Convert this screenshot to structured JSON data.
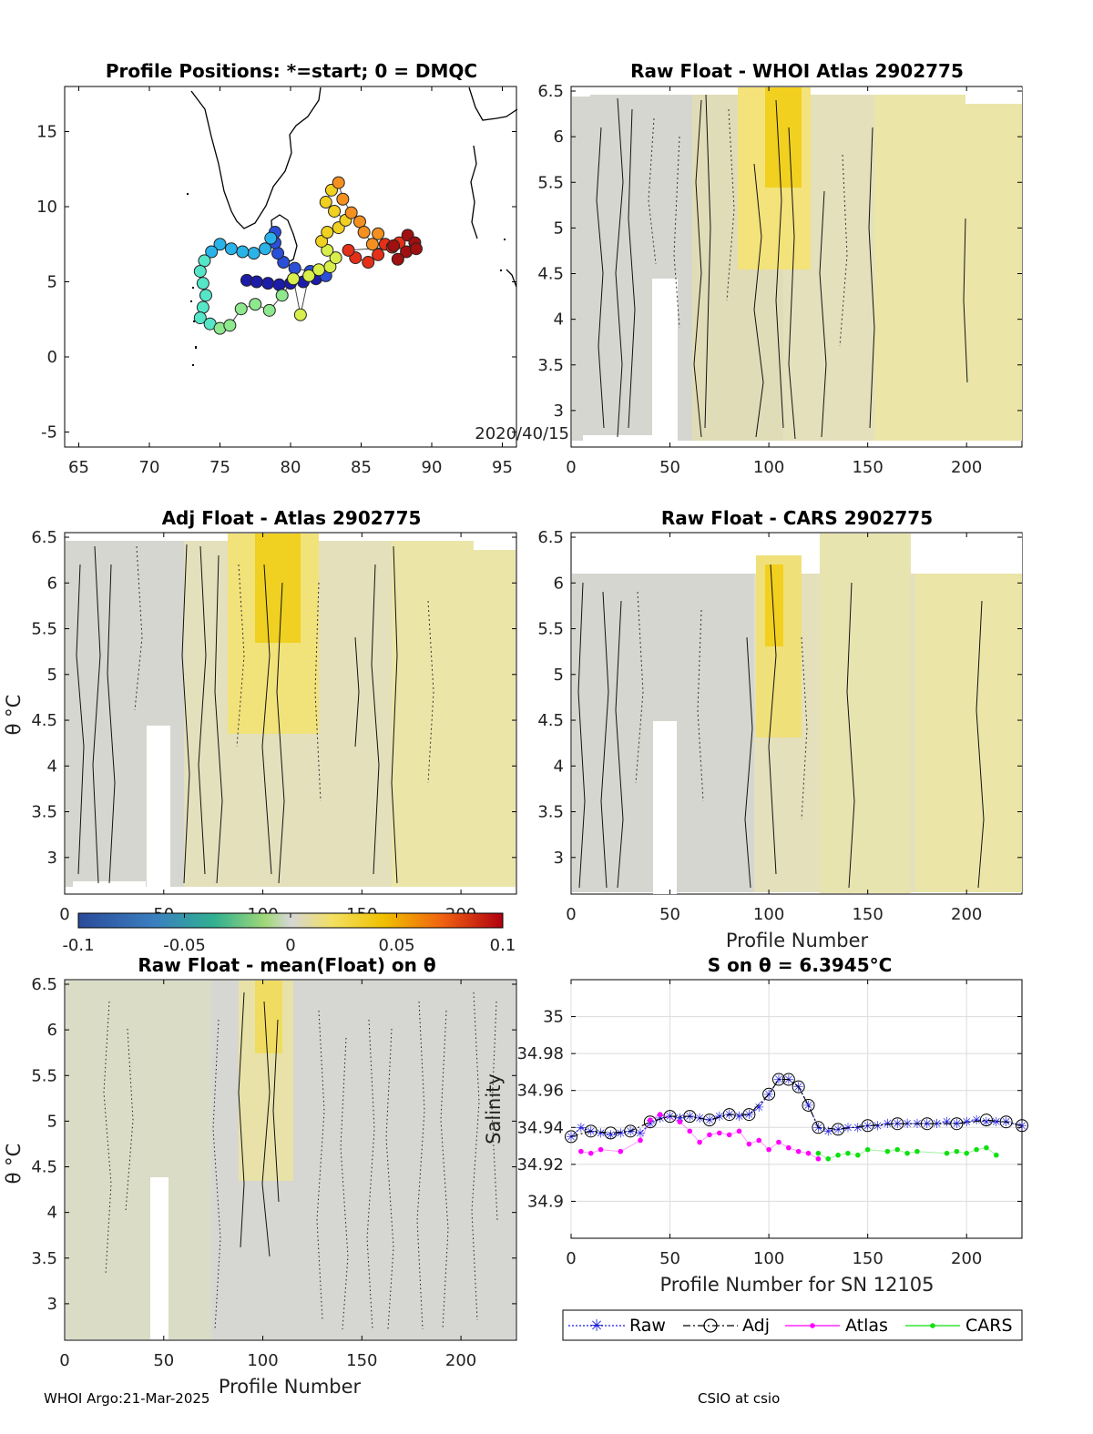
{
  "footer": {
    "left": "WHOI Argo:21-Mar-2025",
    "right": "CSIO at csio"
  },
  "colors": {
    "map_ramp": [
      "#1c1ca8",
      "#2a4fd8",
      "#29b3e8",
      "#55e6c8",
      "#8ee88e",
      "#d8ee4a",
      "#f0d020",
      "#f39020",
      "#e43018",
      "#a01010"
    ]
  },
  "chart_data": [
    {
      "type": "scatter",
      "title": "Profile Positions: *=start; 0 = DMQC",
      "xlim": [
        64,
        96
      ],
      "ylim": [
        -6,
        18
      ],
      "xticks": [
        65,
        70,
        75,
        80,
        85,
        90,
        95
      ],
      "yticks": [
        -5,
        0,
        5,
        10,
        15
      ],
      "annotation": "2020/40/15",
      "track": [
        {
          "x": 76.9,
          "y": 5.1
        },
        {
          "x": 77.6,
          "y": 5.0
        },
        {
          "x": 78.4,
          "y": 4.9
        },
        {
          "x": 79.2,
          "y": 4.8
        },
        {
          "x": 80.0,
          "y": 4.9
        },
        {
          "x": 80.9,
          "y": 5.0
        },
        {
          "x": 81.8,
          "y": 5.2
        },
        {
          "x": 82.5,
          "y": 5.4
        },
        {
          "x": 81.4,
          "y": 5.7
        },
        {
          "x": 80.3,
          "y": 5.9
        },
        {
          "x": 79.5,
          "y": 6.3
        },
        {
          "x": 79.1,
          "y": 6.9
        },
        {
          "x": 78.9,
          "y": 7.6
        },
        {
          "x": 78.9,
          "y": 8.3
        },
        {
          "x": 78.6,
          "y": 7.9
        },
        {
          "x": 78.2,
          "y": 7.2
        },
        {
          "x": 77.4,
          "y": 6.9
        },
        {
          "x": 76.6,
          "y": 7.0
        },
        {
          "x": 75.8,
          "y": 7.2
        },
        {
          "x": 75.0,
          "y": 7.5
        },
        {
          "x": 74.4,
          "y": 7.0
        },
        {
          "x": 73.9,
          "y": 6.4
        },
        {
          "x": 73.6,
          "y": 5.7
        },
        {
          "x": 73.8,
          "y": 4.9
        },
        {
          "x": 74.0,
          "y": 4.1
        },
        {
          "x": 73.8,
          "y": 3.3
        },
        {
          "x": 73.6,
          "y": 2.6
        },
        {
          "x": 74.3,
          "y": 2.2
        },
        {
          "x": 75.0,
          "y": 1.9
        },
        {
          "x": 75.7,
          "y": 2.1
        },
        {
          "x": 76.5,
          "y": 3.2
        },
        {
          "x": 77.5,
          "y": 3.5
        },
        {
          "x": 78.5,
          "y": 3.1
        },
        {
          "x": 79.4,
          "y": 4.1
        },
        {
          "x": 80.2,
          "y": 5.2
        },
        {
          "x": 80.7,
          "y": 2.8
        },
        {
          "x": 81.3,
          "y": 5.4
        },
        {
          "x": 82.0,
          "y": 5.8
        },
        {
          "x": 82.8,
          "y": 6.0
        },
        {
          "x": 83.2,
          "y": 6.6
        },
        {
          "x": 82.6,
          "y": 7.1
        },
        {
          "x": 82.2,
          "y": 7.7
        },
        {
          "x": 82.6,
          "y": 8.3
        },
        {
          "x": 83.4,
          "y": 8.6
        },
        {
          "x": 83.9,
          "y": 9.1
        },
        {
          "x": 83.1,
          "y": 9.7
        },
        {
          "x": 82.5,
          "y": 10.3
        },
        {
          "x": 82.9,
          "y": 11.1
        },
        {
          "x": 83.4,
          "y": 11.6
        },
        {
          "x": 83.7,
          "y": 10.5
        },
        {
          "x": 84.3,
          "y": 9.6
        },
        {
          "x": 84.9,
          "y": 9.0
        },
        {
          "x": 85.2,
          "y": 8.3
        },
        {
          "x": 85.8,
          "y": 7.5
        },
        {
          "x": 86.2,
          "y": 8.2
        },
        {
          "x": 86.7,
          "y": 7.5
        },
        {
          "x": 86.2,
          "y": 6.8
        },
        {
          "x": 85.5,
          "y": 6.3
        },
        {
          "x": 84.6,
          "y": 6.6
        },
        {
          "x": 84.1,
          "y": 7.1
        },
        {
          "x": 87.2,
          "y": 7.3
        },
        {
          "x": 87.7,
          "y": 7.6
        },
        {
          "x": 88.3,
          "y": 8.1
        },
        {
          "x": 88.8,
          "y": 7.6
        },
        {
          "x": 88.2,
          "y": 7.0
        },
        {
          "x": 87.6,
          "y": 6.5
        },
        {
          "x": 88.9,
          "y": 7.2
        },
        {
          "x": 87.3,
          "y": 7.4
        }
      ]
    },
    {
      "type": "heatmap",
      "title": "Raw Float - WHOI Atlas  2902775",
      "xlim": [
        0,
        228
      ],
      "ylim": [
        2.6,
        6.55
      ],
      "xticks": [
        0,
        50,
        100,
        150,
        200
      ],
      "yticks": [
        3,
        3.5,
        4,
        4.5,
        5,
        5.5,
        6,
        6.5
      ]
    },
    {
      "type": "heatmap",
      "title": "Adj Float - Atlas  2902775",
      "ylabel": "θ °C",
      "xlim": [
        0,
        228
      ],
      "ylim": [
        2.6,
        6.55
      ],
      "xticks": [
        0,
        50,
        100,
        150,
        200
      ],
      "yticks": [
        3,
        3.5,
        4,
        4.5,
        5,
        5.5,
        6,
        6.5
      ],
      "colorbar": {
        "min": -0.1,
        "max": 0.1,
        "ticks": [
          "-0.1",
          "-0.05",
          "0",
          "0.05",
          "0.1"
        ]
      }
    },
    {
      "type": "heatmap",
      "title": "Raw Float - CARS  2902775",
      "xlabel": "Profile Number",
      "xlim": [
        0,
        228
      ],
      "ylim": [
        2.6,
        6.55
      ],
      "xticks": [
        0,
        50,
        100,
        150,
        200
      ],
      "yticks": [
        3,
        3.5,
        4,
        4.5,
        5,
        5.5,
        6,
        6.5
      ]
    },
    {
      "type": "heatmap",
      "title": "Raw Float - mean(Float) on θ",
      "xlabel": "Profile Number",
      "ylabel": "θ °C",
      "xlim": [
        0,
        228
      ],
      "ylim": [
        2.6,
        6.55
      ],
      "xticks": [
        0,
        50,
        100,
        150,
        200
      ],
      "yticks": [
        3,
        3.5,
        4,
        4.5,
        5,
        5.5,
        6,
        6.5
      ]
    },
    {
      "type": "line",
      "title": "S on θ = 6.3945°C",
      "xlabel": "Profile Number for SN 12105",
      "ylabel": "Salinity",
      "xlim": [
        0,
        228
      ],
      "ylim": [
        34.88,
        35.02
      ],
      "xticks": [
        0,
        50,
        100,
        150,
        200
      ],
      "yticks": [
        34.9,
        34.92,
        34.94,
        34.96,
        34.98,
        35
      ],
      "grid": true,
      "legend": {
        "position": "bottom",
        "entries": [
          "Raw",
          "Adj",
          "Atlas",
          "CARS"
        ]
      },
      "series": [
        {
          "name": "Raw",
          "color": "#1a1adc",
          "x": [
            0,
            5,
            10,
            15,
            20,
            25,
            30,
            35,
            40,
            45,
            50,
            55,
            60,
            65,
            70,
            75,
            80,
            85,
            90,
            95,
            100,
            105,
            110,
            115,
            120,
            125,
            130,
            135,
            140,
            145,
            150,
            155,
            160,
            165,
            170,
            175,
            180,
            185,
            190,
            195,
            200,
            205,
            210,
            215,
            220,
            228
          ],
          "y": [
            34.935,
            34.94,
            34.938,
            34.937,
            34.936,
            34.937,
            34.938,
            34.937,
            34.942,
            34.945,
            34.946,
            34.945,
            34.946,
            34.945,
            34.944,
            34.946,
            34.947,
            34.946,
            34.947,
            34.951,
            34.958,
            34.966,
            34.966,
            34.962,
            34.952,
            34.94,
            34.938,
            34.939,
            34.94,
            34.94,
            34.941,
            34.941,
            34.942,
            34.942,
            34.942,
            34.942,
            34.942,
            34.942,
            34.943,
            34.942,
            34.943,
            34.944,
            34.943,
            34.943,
            34.943,
            34.941
          ]
        },
        {
          "name": "Adj",
          "color": "#000000",
          "x": [
            0,
            10,
            20,
            30,
            40,
            50,
            60,
            70,
            80,
            90,
            100,
            105,
            110,
            115,
            120,
            125,
            135,
            150,
            165,
            180,
            195,
            210,
            220,
            228
          ],
          "y": [
            34.935,
            34.938,
            34.937,
            34.938,
            34.943,
            34.946,
            34.946,
            34.944,
            34.947,
            34.947,
            34.958,
            34.966,
            34.966,
            34.962,
            34.952,
            34.94,
            34.939,
            34.941,
            34.942,
            34.942,
            34.942,
            34.944,
            34.943,
            34.941
          ]
        },
        {
          "name": "Atlas",
          "color": "#ff00ff",
          "x": [
            5,
            10,
            15,
            25,
            35,
            40,
            45,
            55,
            60,
            65,
            70,
            75,
            80,
            85,
            90,
            95,
            100,
            105,
            110,
            115,
            120,
            125
          ],
          "y": [
            34.927,
            34.926,
            34.928,
            34.927,
            34.933,
            34.944,
            34.947,
            34.943,
            34.938,
            34.932,
            34.936,
            34.937,
            34.936,
            34.938,
            34.931,
            34.933,
            34.928,
            34.932,
            34.929,
            34.927,
            34.926,
            34.923
          ]
        },
        {
          "name": "CARS",
          "color": "#10e010",
          "x": [
            125,
            130,
            135,
            140,
            145,
            150,
            160,
            165,
            170,
            175,
            190,
            195,
            200,
            205,
            210,
            215
          ],
          "y": [
            34.926,
            34.923,
            34.925,
            34.926,
            34.925,
            34.928,
            34.927,
            34.928,
            34.926,
            34.927,
            34.926,
            34.927,
            34.926,
            34.928,
            34.929,
            34.925
          ]
        }
      ]
    }
  ]
}
